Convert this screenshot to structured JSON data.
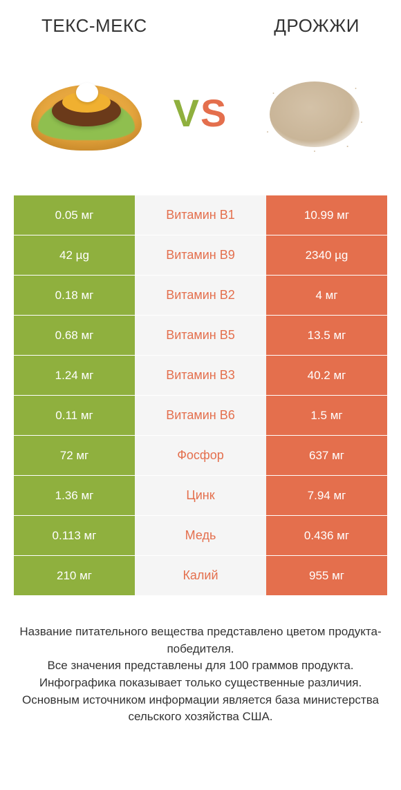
{
  "colors": {
    "left_bg": "#8fb03e",
    "right_bg": "#e46f4d",
    "mid_bg": "#f5f5f5",
    "left_text": "#ffffff",
    "right_text": "#ffffff",
    "vs_v": "#8fb03e",
    "vs_s": "#e46f4d",
    "body_text": "#333333"
  },
  "header": {
    "left": "ТЕКС-МЕКС",
    "right": "ДРОЖЖИ"
  },
  "vs": {
    "v": "V",
    "s": "S"
  },
  "rows": [
    {
      "left": "0.05 мг",
      "mid": "Витамин B1",
      "right": "10.99 мг",
      "winner": "right"
    },
    {
      "left": "42 µg",
      "mid": "Витамин B9",
      "right": "2340 µg",
      "winner": "right"
    },
    {
      "left": "0.18 мг",
      "mid": "Витамин B2",
      "right": "4 мг",
      "winner": "right"
    },
    {
      "left": "0.68 мг",
      "mid": "Витамин B5",
      "right": "13.5 мг",
      "winner": "right"
    },
    {
      "left": "1.24 мг",
      "mid": "Витамин B3",
      "right": "40.2 мг",
      "winner": "right"
    },
    {
      "left": "0.11 мг",
      "mid": "Витамин B6",
      "right": "1.5 мг",
      "winner": "right"
    },
    {
      "left": "72 мг",
      "mid": "Фосфор",
      "right": "637 мг",
      "winner": "right"
    },
    {
      "left": "1.36 мг",
      "mid": "Цинк",
      "right": "7.94 мг",
      "winner": "right"
    },
    {
      "left": "0.113 мг",
      "mid": "Медь",
      "right": "0.436 мг",
      "winner": "right"
    },
    {
      "left": "210 мг",
      "mid": "Калий",
      "right": "955 мг",
      "winner": "right"
    }
  ],
  "footer": {
    "line1": "Название питательного вещества представлено цветом продукта-победителя.",
    "line2": "Все значения представлены для 100 граммов продукта.",
    "line3": "Инфографика показывает только существенные различия.",
    "line4": "Основным источником информации является база министерства сельского хозяйства США."
  }
}
